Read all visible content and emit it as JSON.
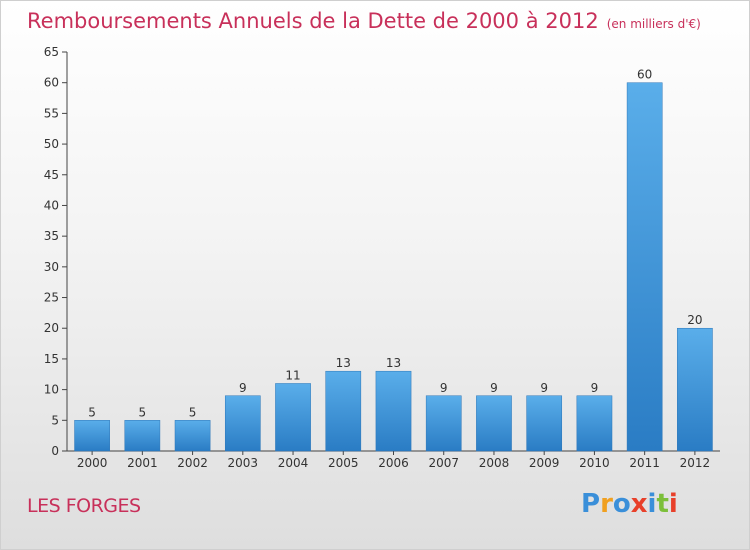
{
  "chart_data": {
    "type": "bar",
    "title": "Remboursements Annuels de la Dette de 2000 à 2012",
    "subtitle": "(en milliers d'€)",
    "categories": [
      "2000",
      "2001",
      "2002",
      "2003",
      "2004",
      "2005",
      "2006",
      "2007",
      "2008",
      "2009",
      "2010",
      "2011",
      "2012"
    ],
    "values": [
      5,
      5,
      5,
      9,
      11,
      13,
      13,
      9,
      9,
      9,
      9,
      60,
      20
    ],
    "ylim": [
      0,
      65
    ],
    "yticks": [
      0,
      5,
      10,
      15,
      20,
      25,
      30,
      35,
      40,
      45,
      50,
      55,
      60,
      65
    ],
    "grid": false,
    "bar_color": "#3a93d8"
  },
  "commune": "LES FORGES",
  "logo": {
    "letters": [
      "P",
      "r",
      "o",
      "x",
      "i",
      "t",
      "i"
    ],
    "colors": [
      "#3a8fd9",
      "#f0a020",
      "#3a8fd9",
      "#e8402a",
      "#3a8fd9",
      "#7cbf3a",
      "#e8402a"
    ]
  }
}
